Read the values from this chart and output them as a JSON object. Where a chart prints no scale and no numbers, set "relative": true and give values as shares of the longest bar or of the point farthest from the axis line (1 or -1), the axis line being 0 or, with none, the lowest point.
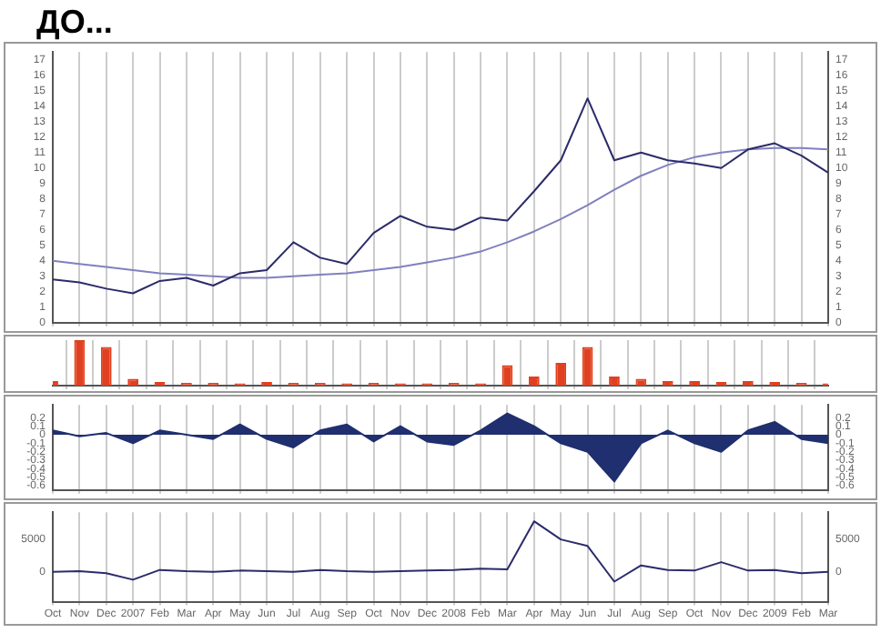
{
  "chart_data": [
    {
      "type": "line",
      "title": "ДО...",
      "series": [
        {
          "color": "#2b2b6b",
          "values": [
            2.8,
            2.6,
            2.2,
            1.9,
            2.7,
            2.9,
            2.4,
            3.2,
            3.4,
            5.2,
            4.2,
            3.8,
            5.8,
            6.9,
            6.2,
            6.0,
            6.8,
            6.6,
            8.5,
            10.5,
            14.5,
            10.5,
            11.0,
            10.5,
            10.3,
            10.0,
            11.2,
            11.6,
            10.8,
            9.7
          ]
        },
        {
          "color": "#8080c0",
          "values": [
            4.0,
            3.8,
            3.6,
            3.4,
            3.2,
            3.1,
            3.0,
            2.9,
            2.9,
            3.0,
            3.1,
            3.2,
            3.4,
            3.6,
            3.9,
            4.2,
            4.6,
            5.2,
            5.9,
            6.7,
            7.6,
            8.6,
            9.5,
            10.2,
            10.7,
            11.0,
            11.2,
            11.3,
            11.3,
            11.2
          ]
        }
      ],
      "ylim": [
        0,
        17.5
      ],
      "yticks": [
        0,
        1,
        2,
        3,
        4,
        5,
        6,
        7,
        8,
        9,
        10,
        11,
        12,
        13,
        14,
        15,
        16,
        17
      ],
      "y2lim": [
        0,
        17.5
      ],
      "y2ticks": [
        0,
        1,
        2,
        3,
        4,
        5,
        6,
        7,
        8,
        9,
        10,
        11,
        12,
        13,
        14,
        15,
        16,
        17
      ],
      "grid": "x",
      "tick_labels": "y"
    },
    {
      "type": "bar",
      "relative": true,
      "series": [
        {
          "color": "#e04020",
          "values": [
            0.1,
            1.0,
            0.85,
            0.15,
            0.08,
            0.06,
            0.06,
            0.05,
            0.08,
            0.06,
            0.06,
            0.05,
            0.06,
            0.05,
            0.05,
            0.06,
            0.05,
            0.45,
            0.2,
            0.5,
            0.85,
            0.2,
            0.15,
            0.1,
            0.1,
            0.08,
            0.1,
            0.08,
            0.06,
            0.05
          ]
        }
      ],
      "grid": "x",
      "tick_labels": false
    },
    {
      "type": "area",
      "series": [
        {
          "color": "#1f2f6f",
          "values": [
            0.05,
            -0.02,
            0.02,
            -0.1,
            0.05,
            0.0,
            -0.05,
            0.12,
            -0.05,
            -0.15,
            0.05,
            0.12,
            -0.08,
            0.1,
            -0.08,
            -0.12,
            0.05,
            0.25,
            0.1,
            -0.1,
            -0.2,
            -0.55,
            -0.1,
            0.05,
            -0.1,
            -0.2,
            0.05,
            0.15,
            -0.05,
            -0.1
          ]
        }
      ],
      "ylim": [
        -0.65,
        0.35
      ],
      "yticks": [
        -0.6,
        -0.5,
        -0.4,
        -0.3,
        -0.2,
        -0.1,
        0.0,
        0.1,
        0.2
      ],
      "y2lim": [
        -0.65,
        0.35
      ],
      "y2ticks": [
        -0.6,
        -0.5,
        -0.4,
        -0.3,
        -0.2,
        -0.1,
        0.0,
        0.1,
        0.2
      ],
      "grid": "x",
      "tick_labels": "y"
    },
    {
      "type": "line",
      "categories": [
        "Oct",
        "Nov",
        "Dec",
        "2007",
        "Feb",
        "Mar",
        "Apr",
        "May",
        "Jun",
        "Jul",
        "Aug",
        "Sep",
        "Oct",
        "Nov",
        "Dec",
        "2008",
        "Feb",
        "Mar",
        "Apr",
        "May",
        "Jun",
        "Jul",
        "Aug",
        "Sep",
        "Oct",
        "Nov",
        "Dec",
        "2009",
        "Feb",
        "Mar"
      ],
      "series": [
        {
          "color": "#2b2b6b",
          "values": [
            0,
            100,
            -200,
            -1200,
            300,
            100,
            0,
            200,
            100,
            0,
            300,
            100,
            0,
            100,
            200,
            300,
            500,
            400,
            7800,
            5000,
            4000,
            -1500,
            1000,
            300,
            200,
            1500,
            200,
            300,
            -200,
            0
          ]
        }
      ],
      "ylim": [
        -4600,
        9200
      ],
      "yticks": [
        0,
        5000
      ],
      "y2lim": [
        -4600,
        9200
      ],
      "y2ticks": [
        0,
        5000
      ],
      "grid": "x"
    }
  ]
}
